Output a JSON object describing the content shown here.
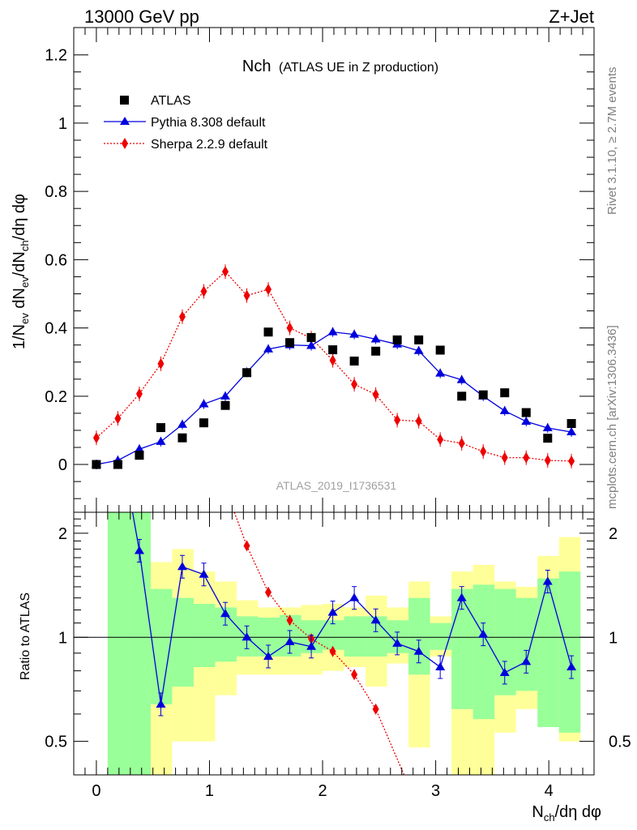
{
  "header": {
    "left": "13000 GeV pp",
    "right": "Z+Jet"
  },
  "side_labels": {
    "rivet": "Rivet 3.1.10, ≥ 2.7M events",
    "mcplots": "mcplots.cern.ch [arXiv:1306.3436]"
  },
  "chart_data": [
    {
      "type": "scatter",
      "title_main": "Nch",
      "title_sub": "(ATLAS UE in Z production)",
      "watermark": "ATLAS_2019_I1736531",
      "ylabel": "1/N_ev dN_ev/dN_ch/dη dφ",
      "xlim": [
        -0.2,
        4.4
      ],
      "ylim": [
        -0.14,
        1.28
      ],
      "yticks": [
        "0",
        "0.2",
        "0.4",
        "0.6",
        "0.8",
        "1",
        "1.2"
      ],
      "series": [
        {
          "name": "ATLAS",
          "color": "#000000",
          "marker": "square",
          "x": [
            0.0,
            0.19,
            0.38,
            0.57,
            0.76,
            0.95,
            1.14,
            1.33,
            1.52,
            1.71,
            1.9,
            2.09,
            2.28,
            2.47,
            2.66,
            2.85,
            3.04,
            3.23,
            3.42,
            3.61,
            3.8,
            3.99,
            4.2
          ],
          "y": [
            0.0,
            0.0,
            0.027,
            0.108,
            0.078,
            0.122,
            0.173,
            0.269,
            0.388,
            0.357,
            0.372,
            0.336,
            0.303,
            0.332,
            0.365,
            0.365,
            0.335,
            0.2,
            0.204,
            0.21,
            0.152,
            0.077,
            0.12
          ]
        },
        {
          "name": "Pythia 8.308 default",
          "color": "#0000dd",
          "marker": "triangle",
          "line": "solid",
          "x": [
            0.0,
            0.19,
            0.38,
            0.57,
            0.76,
            0.95,
            1.14,
            1.33,
            1.52,
            1.71,
            1.9,
            2.09,
            2.28,
            2.47,
            2.66,
            2.85,
            3.04,
            3.23,
            3.42,
            3.61,
            3.8,
            3.99,
            4.2
          ],
          "y": [
            0.0,
            0.012,
            0.045,
            0.067,
            0.117,
            0.177,
            0.2,
            0.27,
            0.338,
            0.35,
            0.348,
            0.388,
            0.381,
            0.367,
            0.352,
            0.333,
            0.267,
            0.248,
            0.2,
            0.157,
            0.126,
            0.107,
            0.095
          ]
        },
        {
          "name": "Sherpa 2.2.9 default",
          "color": "#ee0000",
          "marker": "diamond",
          "line": "dotted",
          "x": [
            0.0,
            0.19,
            0.38,
            0.57,
            0.76,
            0.95,
            1.14,
            1.33,
            1.52,
            1.71,
            1.9,
            2.09,
            2.28,
            2.47,
            2.66,
            2.85,
            3.04,
            3.23,
            3.42,
            3.61,
            3.8,
            3.99,
            4.2
          ],
          "y": [
            0.078,
            0.135,
            0.207,
            0.295,
            0.433,
            0.507,
            0.565,
            0.495,
            0.513,
            0.4,
            0.37,
            0.305,
            0.235,
            0.205,
            0.13,
            0.127,
            0.073,
            0.062,
            0.038,
            0.02,
            0.02,
            0.012,
            0.01
          ]
        }
      ]
    },
    {
      "type": "scatter",
      "ylabel": "Ratio to ATLAS",
      "xlabel": "N_ch/dη dφ",
      "yscale": "log",
      "xlim": [
        -0.2,
        4.4
      ],
      "ylim": [
        0.4,
        2.3
      ],
      "xticks": [
        "0",
        "1",
        "2",
        "3",
        "4"
      ],
      "yticks": [
        "0.5",
        "1",
        "2"
      ],
      "bands": {
        "edges": [
          0.1,
          0.29,
          0.48,
          0.67,
          0.86,
          1.05,
          1.24,
          1.43,
          1.62,
          1.81,
          2.0,
          2.19,
          2.38,
          2.57,
          2.76,
          2.95,
          3.14,
          3.33,
          3.52,
          3.71,
          3.9,
          4.09,
          4.28
        ],
        "yellow": [
          [
            0.3,
            2.6
          ],
          [
            0.3,
            2.6
          ],
          [
            0.4,
            1.65
          ],
          [
            0.5,
            1.8
          ],
          [
            0.5,
            1.55
          ],
          [
            0.68,
            1.45
          ],
          [
            0.78,
            1.28
          ],
          [
            0.78,
            1.22
          ],
          [
            0.78,
            1.22
          ],
          [
            0.78,
            1.24
          ],
          [
            0.8,
            1.25
          ],
          [
            0.82,
            1.22
          ],
          [
            0.72,
            1.32
          ],
          [
            0.84,
            1.22
          ],
          [
            0.48,
            1.45
          ],
          [
            0.88,
            1.15
          ],
          [
            0.4,
            1.55
          ],
          [
            0.4,
            1.62
          ],
          [
            0.53,
            1.45
          ],
          [
            0.62,
            1.4
          ],
          [
            0.6,
            1.72
          ],
          [
            0.5,
            1.95
          ]
        ],
        "green": [
          [
            0.3,
            2.6
          ],
          [
            0.3,
            2.6
          ],
          [
            0.64,
            1.38
          ],
          [
            0.72,
            1.3
          ],
          [
            0.82,
            1.25
          ],
          [
            0.85,
            1.22
          ],
          [
            0.88,
            1.15
          ],
          [
            0.88,
            1.14
          ],
          [
            0.88,
            1.16
          ],
          [
            0.9,
            1.12
          ],
          [
            0.92,
            1.12
          ],
          [
            0.88,
            1.15
          ],
          [
            0.88,
            1.15
          ],
          [
            0.9,
            1.12
          ],
          [
            0.78,
            1.3
          ],
          [
            0.92,
            1.1
          ],
          [
            0.62,
            1.38
          ],
          [
            0.58,
            1.42
          ],
          [
            0.68,
            1.38
          ],
          [
            0.7,
            1.3
          ],
          [
            0.55,
            1.48
          ],
          [
            0.53,
            1.55
          ]
        ]
      },
      "series": [
        {
          "name": "Pythia 8.308 default",
          "color": "#0000dd",
          "marker": "triangle",
          "x": [
            0.38,
            0.57,
            0.76,
            0.95,
            1.14,
            1.33,
            1.52,
            1.71,
            1.9,
            2.09,
            2.28,
            2.47,
            2.66,
            2.85,
            3.04,
            3.23,
            3.42,
            3.61,
            3.8,
            3.99,
            4.2
          ],
          "y": [
            1.78,
            0.64,
            1.6,
            1.52,
            1.17,
            1.0,
            0.88,
            0.97,
            0.94,
            1.18,
            1.3,
            1.12,
            0.96,
            0.91,
            0.82,
            1.3,
            1.02,
            0.79,
            0.85,
            1.45,
            0.82
          ],
          "lead_in": [
            0.32,
            2.4
          ]
        },
        {
          "name": "Sherpa 2.2.9 default",
          "color": "#ee0000",
          "marker": "diamond",
          "x": [
            1.33,
            1.52,
            1.71,
            1.9,
            2.09,
            2.28,
            2.47
          ],
          "y": [
            1.84,
            1.35,
            1.12,
            0.99,
            0.91,
            0.78,
            0.62
          ],
          "tail": [
            [
              1.22,
              2.4
            ],
            [
              2.72,
              0.33
            ]
          ]
        }
      ],
      "reference_line": 1
    }
  ]
}
